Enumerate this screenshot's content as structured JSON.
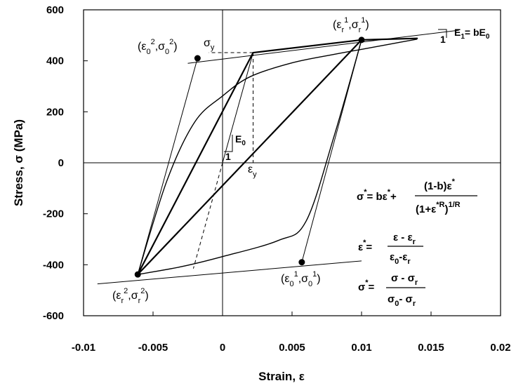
{
  "chart_data": {
    "type": "line",
    "xlabel": "Strain, ε",
    "ylabel": "Stress, σ  (MPa)",
    "xlim": [
      -0.01,
      0.02
    ],
    "ylim": [
      -600,
      600
    ],
    "x_ticks": [
      "-0.01",
      "-0.005",
      "0",
      "0.005",
      "0.01",
      "0.015",
      "0.02"
    ],
    "y_ticks": [
      "600",
      "400",
      "200",
      "0",
      "-200",
      "-400",
      "-600"
    ],
    "grid": false,
    "series": [
      {
        "id": "bilinear-loop",
        "style": "bold",
        "points": [
          [
            -0.0061,
            -438
          ],
          [
            0.0022,
            432
          ],
          [
            0.01,
            482
          ],
          [
            0.014,
            488
          ],
          [
            0.01,
            482
          ],
          [
            -0.0061,
            -438
          ]
        ]
      },
      {
        "id": "upper-asymptote",
        "style": "thin",
        "points": [
          [
            -0.0025,
            390
          ],
          [
            0.017,
            520
          ]
        ]
      },
      {
        "id": "lower-asymptote",
        "style": "thin",
        "points": [
          [
            -0.009,
            -475
          ],
          [
            0.01,
            -385
          ]
        ]
      },
      {
        "id": "initial-elastic-line",
        "style": "thin",
        "points": [
          [
            0,
            0
          ],
          [
            0.0022,
            432
          ]
        ]
      },
      {
        "id": "elastic-unload-line-1",
        "style": "thin",
        "points": [
          [
            0.01,
            482
          ],
          [
            0.0057,
            -390
          ]
        ]
      },
      {
        "id": "elastic-unload-line-2",
        "style": "thin",
        "points": [
          [
            -0.0061,
            -438
          ],
          [
            -0.0018,
            410
          ]
        ]
      },
      {
        "id": "initial-elastic-extension",
        "style": "dashed",
        "points": [
          [
            0,
            0
          ],
          [
            -0.0021,
            -415
          ]
        ]
      },
      {
        "id": "yield-strain-marker",
        "style": "dashed",
        "points": [
          [
            0.0022,
            432
          ],
          [
            0.0022,
            0
          ]
        ]
      },
      {
        "id": "yield-stress-marker",
        "style": "dashed",
        "points": [
          [
            0.0022,
            432
          ],
          [
            -0.001,
            432
          ]
        ]
      },
      {
        "id": "menegotto-pinto-curve-1",
        "style": "smooth",
        "points": [
          [
            -0.0061,
            -438
          ],
          [
            -0.004,
            -70
          ],
          [
            -0.002,
            160
          ],
          [
            0.0,
            262
          ],
          [
            0.002,
            338
          ],
          [
            0.005,
            392
          ],
          [
            0.008,
            425
          ],
          [
            0.01,
            445
          ],
          [
            0.012,
            465
          ],
          [
            0.014,
            485
          ]
        ]
      },
      {
        "id": "menegotto-pinto-curve-2",
        "style": "smooth",
        "points": [
          [
            0.01,
            482
          ],
          [
            0.008,
            100
          ],
          [
            0.006,
            -230
          ],
          [
            0.004,
            -305
          ],
          [
            0.0,
            -368
          ],
          [
            -0.003,
            -408
          ],
          [
            -0.0061,
            -438
          ]
        ]
      }
    ],
    "points": [
      {
        "id": "reversal-point-1",
        "label_part": "r1",
        "x": 0.01,
        "y": 482
      },
      {
        "id": "reversal-point-2",
        "label_part": "r2",
        "x": -0.0061,
        "y": -438
      },
      {
        "id": "asymptote-intersection-1",
        "label_part": "01",
        "x": 0.0057,
        "y": -390
      },
      {
        "id": "asymptote-intersection-2",
        "label_part": "02",
        "x": -0.0018,
        "y": 410
      }
    ],
    "annotations": {
      "r1": {
        "eps": "ε",
        "sub": "r",
        "sup": "1",
        "sig": "σ"
      },
      "r2": {
        "eps": "ε",
        "sub": "r",
        "sup": "2",
        "sig": "σ"
      },
      "01": {
        "eps": "ε",
        "sub": "0",
        "sup": "1",
        "sig": "σ"
      },
      "02": {
        "eps": "ε",
        "sub": "0",
        "sup": "2",
        "sig": "σ"
      },
      "sigma_y": {
        "sym": "σ",
        "sub": "y"
      },
      "eps_y": {
        "sym": "ε",
        "sub": "y"
      },
      "E0": {
        "sym": "E",
        "sub": "0"
      },
      "slope_one": "1",
      "E1": {
        "lhs": "E",
        "sub1": "1",
        "rhs": "= bE",
        "sub2": "0"
      },
      "eq1": {
        "lhs": "σ",
        "star": "*",
        "eq": "= bε",
        "num": "(1-b)ε",
        "den": "(1+ε",
        "starR": "*R",
        "pow": "1/R"
      },
      "eq2": {
        "lhs": "ε",
        "star": "*",
        "num": "ε - ε",
        "num_sub": "r",
        "den": "ε",
        "den_sub1": "0",
        "den_mid": "-ε",
        "den_sub2": "r"
      },
      "eq3": {
        "lhs": "σ",
        "star": "*",
        "num": "σ - σ",
        "num_sub": "r",
        "den": "σ",
        "den_sub1": "0",
        "den_mid": "- σ",
        "den_sub2": "r"
      }
    }
  }
}
